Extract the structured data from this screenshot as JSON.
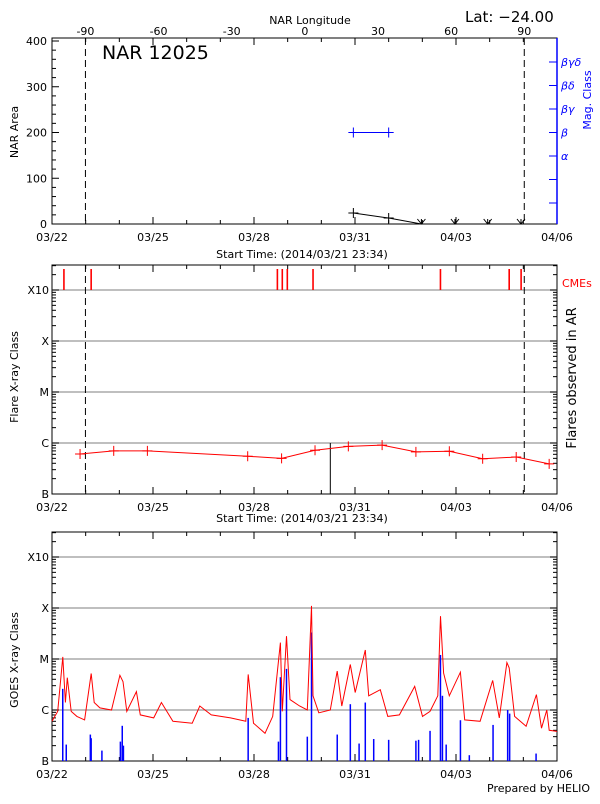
{
  "header": {
    "lat_label": "Lat: −24.00",
    "region_title": "NAR 12025",
    "footer": "Prepared by HELIO"
  },
  "colors": {
    "long_channel": "#ff0000",
    "short_channel": "#0000ff",
    "mag_class": "#0000ff",
    "cme": "#ff0000",
    "grid": "#999999"
  },
  "chart_data": [
    {
      "type": "line",
      "panel": "top",
      "ylabel": "NAR Area",
      "xlabel": "Start Time: (2014/03/21 23:34)",
      "top_axis_label": "NAR Longitude",
      "top_axis_ticks": [
        "-90",
        "-60",
        "-30",
        "0",
        "30",
        "60",
        "90"
      ],
      "right_axis_label": "Mag. Class",
      "right_axis_ticks": [
        "α",
        "β",
        "βγ",
        "βδ",
        "βγδ"
      ],
      "ylim": [
        0,
        400
      ],
      "yticks": [
        "0",
        "100",
        "200",
        "300",
        "400"
      ],
      "xticks": [
        "03/22",
        "03/25",
        "03/28",
        "03/31",
        "04/03",
        "04/06"
      ],
      "xlim": [
        "03/22 00:00",
        "04/06 00:00"
      ],
      "area": [
        [
          "03/30 22:50",
          24
        ],
        [
          "04/01 00:00",
          13
        ],
        [
          "04/01 23:20",
          0
        ],
        [
          "04/02 23:15",
          0
        ],
        [
          "04/03 22:35",
          0
        ],
        [
          "04/04 22:20",
          0
        ]
      ],
      "mag_class": [
        [
          "03/30 22:50",
          "β"
        ],
        [
          "04/01 00:00",
          "β"
        ]
      ],
      "limb_lines": [
        "03/22 23:50",
        "04/05 00:40"
      ]
    },
    {
      "type": "line",
      "panel": "middle",
      "ylabel": "Flare X-ray Class",
      "right_label": "Flares observed in AR",
      "cme_label": "CMEs",
      "xlabel": "Start Time: (2014/03/21 23:34)",
      "yticks": [
        "B",
        "C",
        "M",
        "X",
        "X10"
      ],
      "xticks": [
        "03/22",
        "03/25",
        "03/28",
        "03/31",
        "04/03",
        "04/06"
      ],
      "xlim": [
        "03/22 00:00",
        "04/06 00:00"
      ],
      "flares": [
        [
          "03/22 20:00",
          "B6.1"
        ],
        [
          "03/23 20:00",
          "B7.0"
        ],
        [
          "03/24 20:00",
          "B7.0"
        ],
        [
          "03/27 19:30",
          "B5.5"
        ],
        [
          "03/28 19:40",
          "B5.0"
        ],
        [
          "03/29 19:30",
          "B7.2"
        ],
        [
          "03/30 19:15",
          "B8.6"
        ],
        [
          "03/31 19:20",
          "B9.1"
        ],
        [
          "04/01 19:25",
          "B6.7"
        ],
        [
          "04/02 19:15",
          "B6.9"
        ],
        [
          "04/03 19:00",
          "B4.9"
        ],
        [
          "04/04 18:55",
          "B5.3"
        ],
        [
          "04/05 18:25",
          "B3.9"
        ]
      ],
      "cmes": [
        "03/22 08:30",
        "03/23 03:55",
        "03/28 16:40",
        "03/28 20:10",
        "03/28 23:45",
        "03/29 18:05",
        "04/02 12:55",
        "04/04 13:55",
        "04/04 22:25"
      ],
      "marker_line": "03/30 06:24",
      "limb_lines": [
        "03/22 23:50",
        "04/05 00:40"
      ]
    },
    {
      "type": "line",
      "panel": "bottom",
      "ylabel": "GOES X-ray Class",
      "yticks": [
        "B",
        "C",
        "M",
        "X",
        "X10"
      ],
      "xticks": [
        "03/22",
        "03/25",
        "03/28",
        "03/31",
        "04/03",
        "04/06"
      ],
      "xlim": [
        "03/22 00:00",
        "04/06 00:00"
      ],
      "series": [
        {
          "channel": "long",
          "values": [
            [
              "03/22 00:00",
              "B6.0"
            ],
            [
              "03/22 04:05",
              "B9.4"
            ],
            [
              "03/22 07:40",
              "M1.1"
            ],
            [
              "03/22 09:35",
              "C1.4"
            ],
            [
              "03/22 10:55",
              "C4.3"
            ],
            [
              "03/22 13:40",
              "B9.4"
            ],
            [
              "03/22 17:45",
              "B7.5"
            ],
            [
              "03/22 23:15",
              "B6.4"
            ],
            [
              "03/23 03:55",
              "C5.2"
            ],
            [
              "03/23 06:05",
              "C1.4"
            ],
            [
              "03/23 10:10",
              "C1.1"
            ],
            [
              "03/23 18:25",
              "C1.0"
            ],
            [
              "03/24 00:25",
              "C4.8"
            ],
            [
              "03/24 02:35",
              "C3.6"
            ],
            [
              "03/24 05:20",
              "B9.4"
            ],
            [
              "03/24 12:10",
              "C2.3"
            ],
            [
              "03/24 14:55",
              "B8.0"
            ],
            [
              "03/25 00:30",
              "B7.0"
            ],
            [
              "03/25 06:00",
              "C1.4"
            ],
            [
              "03/25 14:10",
              "B6.0"
            ],
            [
              "03/26 03:55",
              "B5.5"
            ],
            [
              "03/26 09:20",
              "C1.2"
            ],
            [
              "03/26 17:35",
              "B8.0"
            ],
            [
              "03/27 07:15",
              "B7.0"
            ],
            [
              "03/27 18:10",
              "B6.0"
            ],
            [
              "03/27 19:50",
              "C5.0"
            ],
            [
              "03/27 23:40",
              "B5.5"
            ],
            [
              "03/28 07:50",
              "B3.5"
            ],
            [
              "03/28 13:20",
              "B7.5"
            ],
            [
              "03/28 18:50",
              "M2.1"
            ],
            [
              "03/28 20:10",
              "B9.4"
            ],
            [
              "03/28 23:10",
              "M2.8"
            ],
            [
              "03/29 01:40",
              "C1.6"
            ],
            [
              "03/29 08:30",
              "C1.2"
            ],
            [
              "03/29 14:00",
              "C1.0"
            ],
            [
              "03/29 17:00",
              "X1.1"
            ],
            [
              "03/29 18:05",
              "C1.9"
            ],
            [
              "03/29 22:10",
              "B8.8"
            ],
            [
              "03/30 06:25",
              "C1.0"
            ],
            [
              "03/30 11:20",
              "C5.8"
            ],
            [
              "03/30 14:35",
              "C1.2"
            ],
            [
              "03/30 20:40",
              "C7.8"
            ],
            [
              "03/31 00:10",
              "C2.2"
            ],
            [
              "03/31 07:20",
              "M1.5"
            ],
            [
              "03/31 09:45",
              "C1.9"
            ],
            [
              "03/31 18:00",
              "C2.5"
            ],
            [
              "03/31 23:25",
              "B7.5"
            ],
            [
              "04/01 07:40",
              "B8.0"
            ],
            [
              "04/01 18:35",
              "C2.9"
            ],
            [
              "04/02 00:05",
              "B7.5"
            ],
            [
              "04/02 05:30",
              "B9.4"
            ],
            [
              "04/02 11:00",
              "C1.9"
            ],
            [
              "04/02 12:55",
              "M6.9"
            ],
            [
              "04/02 15:10",
              "C5.3"
            ],
            [
              "04/02 19:15",
              "C1.9"
            ],
            [
              "04/03 03:10",
              "C5.5"
            ],
            [
              "04/03 06:10",
              "B6.4"
            ],
            [
              "04/03 17:10",
              "B6.0"
            ],
            [
              "04/04 02:10",
              "C3.8"
            ],
            [
              "04/04 06:50",
              "B7.0"
            ],
            [
              "04/04 12:15",
              "C8.5"
            ],
            [
              "04/04 13:55",
              "C6.7"
            ],
            [
              "04/04 17:45",
              "B7.5"
            ],
            [
              "04/05 02:00",
              "B4.8"
            ],
            [
              "04/05 09:20",
              "C2.0"
            ],
            [
              "04/05 12:55",
              "B4.4"
            ],
            [
              "04/05 16:45",
              "C1.0"
            ],
            [
              "04/05 18:25",
              "B4.0"
            ],
            [
              "04/06 00:00",
              "B3.8"
            ]
          ]
        },
        {
          "channel": "short",
          "values": [
            [
              "03/22 07:40",
              "C2.6"
            ],
            [
              "03/22 10:10",
              "B2.1"
            ],
            [
              "03/23 03:20",
              "B3.3"
            ],
            [
              "03/23 03:55",
              "B2.8"
            ],
            [
              "03/23 11:35",
              "B1.6"
            ],
            [
              "03/24 00:45",
              "B2.4"
            ],
            [
              "03/24 02:05",
              "B4.9"
            ],
            [
              "03/24 02:55",
              "B2.0"
            ],
            [
              "03/27 19:50",
              "B7.0"
            ],
            [
              "03/28 17:25",
              "B2.4"
            ],
            [
              "03/28 18:50",
              "C4.4"
            ],
            [
              "03/28 23:10",
              "C6.4"
            ],
            [
              "03/29 14:00",
              "B3.0"
            ],
            [
              "03/29 17:00",
              "M3.3"
            ],
            [
              "03/30 11:20",
              "B3.3"
            ],
            [
              "03/30 20:40",
              "C1.3"
            ],
            [
              "03/31 02:55",
              "B2.2"
            ],
            [
              "03/31 07:20",
              "C1.4"
            ],
            [
              "03/31 13:20",
              "B2.7"
            ],
            [
              "04/01 00:00",
              "B2.6"
            ],
            [
              "04/01 19:25",
              "B2.5"
            ],
            [
              "04/01 21:20",
              "B2.6"
            ],
            [
              "04/02 05:30",
              "B3.9"
            ],
            [
              "04/02 12:55",
              "M1.2"
            ],
            [
              "04/02 14:20",
              "C1.9"
            ],
            [
              "04/02 17:00",
              "B2.1"
            ],
            [
              "04/03 03:10",
              "B6.3"
            ],
            [
              "04/03 09:30",
              "B1.3"
            ],
            [
              "04/04 02:25",
              "B5.1"
            ],
            [
              "04/04 12:50",
              "C1.0"
            ],
            [
              "04/04 14:15",
              "B8.5"
            ],
            [
              "04/05 09:05",
              "B1.4"
            ]
          ]
        }
      ]
    }
  ]
}
